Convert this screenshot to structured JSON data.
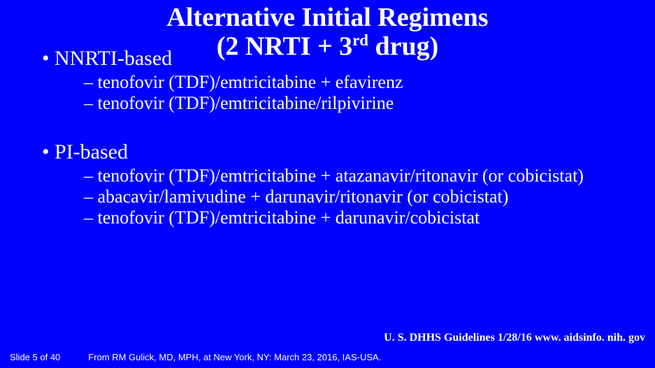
{
  "title": {
    "line1": "Alternative Initial Regimens",
    "line2_pre": "(2 NRTI + 3",
    "line2_sup": "rd",
    "line2_post": " drug)"
  },
  "sections": {
    "nnrti": {
      "heading": "•  NNRTI-based",
      "items": [
        "tenofovir (TDF)/emtricitabine + efavirenz",
        "tenofovir (TDF)/emtricitabine/rilpivirine"
      ]
    },
    "pi": {
      "heading": "•  PI-based",
      "items": [
        "tenofovir (TDF)/emtricitabine + atazanavir/ritonavir (or cobicistat)",
        "abacavir/lamivudine + darunavir/ritonavir (or cobicistat)",
        "tenofovir (TDF)/emtricitabine + darunavir/cobicistat"
      ]
    }
  },
  "reference": "U. S. DHHS Guidelines 1/28/16 www. aidsinfo. nih. gov",
  "footer": {
    "slide": "Slide 5 of 40",
    "citation": "From RM Gulick, MD, MPH, at New York, NY: March 23, 2016, IAS-USA."
  },
  "colors": {
    "background": "#0000ff",
    "text": "#ffffff"
  }
}
